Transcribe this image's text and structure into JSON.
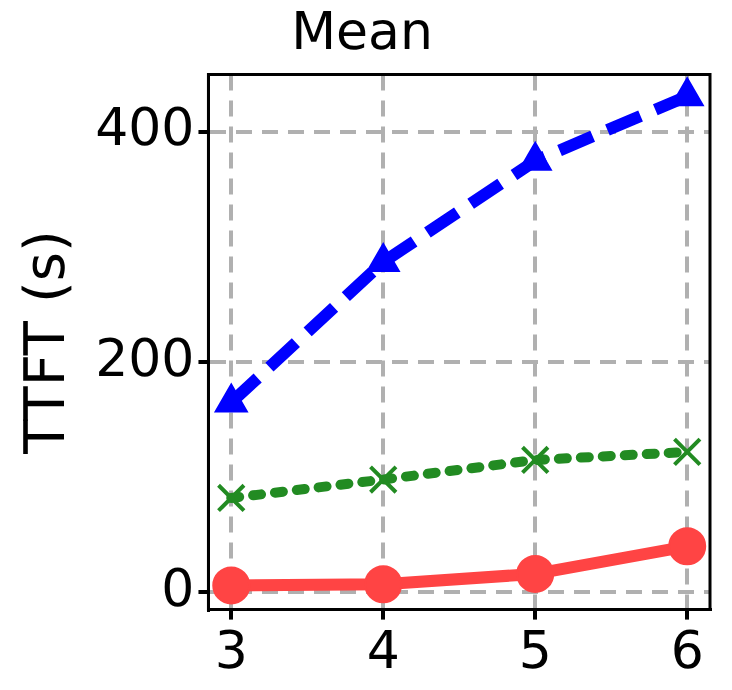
{
  "chart_data": {
    "type": "line",
    "title": "Mean",
    "ylabel": "TTFT (s)",
    "x": [
      3,
      4,
      5,
      6
    ],
    "xlim": [
      2.85,
      6.15
    ],
    "xticks": [
      3,
      4,
      5,
      6
    ],
    "ylim": [
      -15,
      450
    ],
    "yticks": [
      0,
      200,
      400
    ],
    "grid": true,
    "legend": false,
    "series": [
      {
        "color": "#0000ff",
        "values": [
          165,
          287,
          375,
          431
        ],
        "marker": "triangle",
        "line_style": "dashed"
      },
      {
        "color": "#228b22",
        "values": [
          82,
          98,
          115,
          122
        ],
        "marker": "cross",
        "line_style": "dotted"
      },
      {
        "color": "#ff4444",
        "values": [
          6,
          7,
          16,
          40
        ],
        "marker": "circle",
        "line_style": "solid"
      }
    ]
  }
}
